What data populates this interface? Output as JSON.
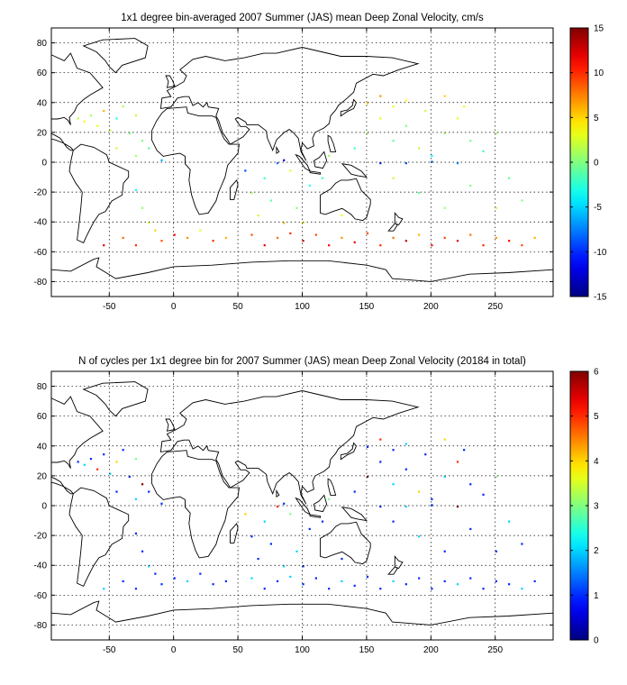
{
  "chart_data": [
    {
      "type": "heatmap",
      "title": "1x1 degree bin-averaged 2007 Summer (JAS) mean Deep Zonal Velocity, cm/s",
      "xlabel": "",
      "ylabel": "",
      "xlim": [
        -95,
        295
      ],
      "ylim": [
        -90,
        90
      ],
      "x_ticks": [
        -50,
        0,
        50,
        100,
        150,
        200,
        250
      ],
      "y_ticks": [
        80,
        60,
        40,
        20,
        0,
        -20,
        -40,
        -60,
        -80
      ],
      "colorbar": {
        "min": -15,
        "max": 15,
        "ticks": [
          15,
          10,
          5,
          0,
          -5,
          -10,
          -15
        ]
      },
      "colormap": "jet",
      "grid": true,
      "bins": [
        [
          -75,
          30,
          2
        ],
        [
          -70,
          28,
          4
        ],
        [
          -65,
          32,
          1
        ],
        [
          -60,
          25,
          3
        ],
        [
          -55,
          35,
          6
        ],
        [
          -50,
          22,
          2
        ],
        [
          -45,
          30,
          -3
        ],
        [
          -40,
          38,
          1
        ],
        [
          -35,
          20,
          0
        ],
        [
          -30,
          32,
          2
        ],
        [
          -60,
          -5,
          -4
        ],
        [
          -40,
          -10,
          2
        ],
        [
          -30,
          -18,
          -3
        ],
        [
          -25,
          -30,
          1
        ],
        [
          -20,
          -40,
          3
        ],
        [
          -15,
          -45,
          5
        ],
        [
          -40,
          -50,
          8
        ],
        [
          -30,
          -55,
          10
        ],
        [
          -55,
          -55,
          12
        ],
        [
          -10,
          -52,
          9
        ],
        [
          0,
          -48,
          11
        ],
        [
          10,
          -50,
          7
        ],
        [
          20,
          -45,
          3
        ],
        [
          30,
          -52,
          10
        ],
        [
          40,
          -50,
          6
        ],
        [
          60,
          -48,
          9
        ],
        [
          70,
          -55,
          12
        ],
        [
          80,
          -50,
          8
        ],
        [
          90,
          -47,
          10
        ],
        [
          100,
          -52,
          13
        ],
        [
          110,
          -48,
          9
        ],
        [
          120,
          -55,
          11
        ],
        [
          130,
          -50,
          7
        ],
        [
          140,
          -53,
          12
        ],
        [
          150,
          -47,
          9
        ],
        [
          160,
          -55,
          10
        ],
        [
          170,
          -50,
          8
        ],
        [
          180,
          -52,
          13
        ],
        [
          190,
          -48,
          6
        ],
        [
          200,
          -55,
          11
        ],
        [
          210,
          -50,
          9
        ],
        [
          220,
          -52,
          12
        ],
        [
          230,
          -48,
          8
        ],
        [
          240,
          -55,
          10
        ],
        [
          250,
          -50,
          7
        ],
        [
          260,
          -52,
          11
        ],
        [
          270,
          -55,
          9
        ],
        [
          280,
          -50,
          6
        ],
        [
          60,
          -20,
          1
        ],
        [
          70,
          -10,
          -2
        ],
        [
          80,
          0,
          -8
        ],
        [
          85,
          2,
          -12
        ],
        [
          90,
          -5,
          3
        ],
        [
          75,
          -25,
          -1
        ],
        [
          65,
          -35,
          2
        ],
        [
          95,
          -30,
          0
        ],
        [
          105,
          -15,
          -3
        ],
        [
          55,
          -5,
          -9
        ],
        [
          140,
          10,
          -2
        ],
        [
          150,
          20,
          1
        ],
        [
          160,
          30,
          3
        ],
        [
          170,
          15,
          -1
        ],
        [
          180,
          25,
          0
        ],
        [
          190,
          10,
          2
        ],
        [
          200,
          5,
          -4
        ],
        [
          210,
          20,
          1
        ],
        [
          220,
          30,
          3
        ],
        [
          230,
          15,
          0
        ],
        [
          240,
          8,
          -2
        ],
        [
          250,
          20,
          1
        ],
        [
          160,
          0,
          -10
        ],
        [
          180,
          0,
          -9
        ],
        [
          200,
          1,
          -8
        ],
        [
          220,
          0,
          -7
        ],
        [
          170,
          -10,
          2
        ],
        [
          190,
          -20,
          -1
        ],
        [
          210,
          -30,
          1
        ],
        [
          230,
          -15,
          0
        ],
        [
          250,
          -30,
          2
        ],
        [
          260,
          -10,
          -1
        ],
        [
          270,
          -25,
          0
        ],
        [
          150,
          40,
          5
        ],
        [
          160,
          45,
          7
        ],
        [
          170,
          38,
          3
        ],
        [
          180,
          42,
          4
        ],
        [
          195,
          35,
          2
        ],
        [
          210,
          45,
          5
        ],
        [
          225,
          38,
          3
        ],
        [
          -20,
          10,
          -1
        ],
        [
          -30,
          5,
          1
        ],
        [
          -10,
          2,
          -6
        ],
        [
          -25,
          15,
          0
        ],
        [
          -45,
          10,
          2
        ],
        [
          115,
          -10,
          -2
        ],
        [
          120,
          5,
          1
        ],
        [
          130,
          -35,
          3
        ],
        [
          100,
          -40,
          4
        ],
        [
          85,
          -40,
          6
        ]
      ]
    },
    {
      "type": "heatmap",
      "title": "N of cycles per 1x1 degree bin for 2007 Summer (JAS) mean Deep Zonal Velocity (20184 in total)",
      "xlabel": "",
      "ylabel": "",
      "xlim": [
        -95,
        295
      ],
      "ylim": [
        -90,
        90
      ],
      "x_ticks": [
        -50,
        0,
        50,
        100,
        150,
        200,
        250
      ],
      "y_ticks": [
        80,
        60,
        40,
        20,
        0,
        -20,
        -40,
        -60,
        -80
      ],
      "colorbar": {
        "min": 0,
        "max": 6,
        "ticks": [
          6,
          5,
          4,
          3,
          2,
          1,
          0
        ]
      },
      "colormap": "jet",
      "grid": true,
      "bins": [
        [
          -75,
          30,
          1
        ],
        [
          -70,
          28,
          2
        ],
        [
          -65,
          32,
          1
        ],
        [
          -60,
          25,
          5
        ],
        [
          -55,
          35,
          1
        ],
        [
          -50,
          22,
          2
        ],
        [
          -45,
          30,
          4
        ],
        [
          -40,
          38,
          1
        ],
        [
          -35,
          20,
          1
        ],
        [
          -30,
          32,
          3
        ],
        [
          -60,
          -5,
          1
        ],
        [
          -40,
          -10,
          2
        ],
        [
          -30,
          -18,
          1
        ],
        [
          -25,
          -30,
          1
        ],
        [
          -20,
          -40,
          2
        ],
        [
          -15,
          -45,
          1
        ],
        [
          -40,
          -50,
          1
        ],
        [
          -30,
          -55,
          1
        ],
        [
          -55,
          -55,
          2
        ],
        [
          -10,
          -52,
          1
        ],
        [
          0,
          -48,
          1
        ],
        [
          10,
          -50,
          2
        ],
        [
          20,
          -45,
          1
        ],
        [
          30,
          -52,
          1
        ],
        [
          40,
          -50,
          1
        ],
        [
          60,
          -48,
          2
        ],
        [
          70,
          -55,
          1
        ],
        [
          80,
          -50,
          1
        ],
        [
          90,
          -47,
          2
        ],
        [
          100,
          -52,
          1
        ],
        [
          110,
          -48,
          1
        ],
        [
          120,
          -55,
          1
        ],
        [
          130,
          -50,
          2
        ],
        [
          140,
          -53,
          1
        ],
        [
          150,
          -47,
          1
        ],
        [
          160,
          -55,
          1
        ],
        [
          170,
          -50,
          2
        ],
        [
          180,
          -52,
          1
        ],
        [
          190,
          -48,
          1
        ],
        [
          200,
          -55,
          1
        ],
        [
          210,
          -50,
          1
        ],
        [
          220,
          -52,
          2
        ],
        [
          230,
          -48,
          1
        ],
        [
          240,
          -55,
          1
        ],
        [
          250,
          -50,
          1
        ],
        [
          260,
          -52,
          1
        ],
        [
          270,
          -55,
          2
        ],
        [
          280,
          -50,
          1
        ],
        [
          60,
          -20,
          1
        ],
        [
          70,
          -10,
          2
        ],
        [
          80,
          0,
          5
        ],
        [
          85,
          2,
          1
        ],
        [
          90,
          -5,
          3
        ],
        [
          75,
          -25,
          1
        ],
        [
          65,
          -35,
          1
        ],
        [
          95,
          -30,
          2
        ],
        [
          105,
          -15,
          1
        ],
        [
          55,
          -5,
          4
        ],
        [
          140,
          10,
          1
        ],
        [
          150,
          20,
          6
        ],
        [
          160,
          30,
          1
        ],
        [
          170,
          15,
          2
        ],
        [
          180,
          25,
          1
        ],
        [
          190,
          10,
          4
        ],
        [
          200,
          5,
          1
        ],
        [
          210,
          20,
          2
        ],
        [
          220,
          30,
          5
        ],
        [
          230,
          15,
          1
        ],
        [
          240,
          8,
          1
        ],
        [
          250,
          20,
          3
        ],
        [
          160,
          0,
          1
        ],
        [
          180,
          0,
          2
        ],
        [
          200,
          1,
          1
        ],
        [
          220,
          0,
          6
        ],
        [
          170,
          -10,
          1
        ],
        [
          190,
          -20,
          2
        ],
        [
          210,
          -30,
          1
        ],
        [
          230,
          -15,
          1
        ],
        [
          250,
          -30,
          1
        ],
        [
          260,
          -10,
          2
        ],
        [
          270,
          -25,
          1
        ],
        [
          150,
          40,
          1
        ],
        [
          160,
          45,
          5
        ],
        [
          170,
          38,
          1
        ],
        [
          180,
          42,
          2
        ],
        [
          195,
          35,
          1
        ],
        [
          210,
          45,
          4
        ],
        [
          225,
          38,
          1
        ],
        [
          -20,
          10,
          1
        ],
        [
          -30,
          5,
          2
        ],
        [
          -10,
          2,
          1
        ],
        [
          -25,
          15,
          6
        ],
        [
          -45,
          10,
          1
        ],
        [
          115,
          -10,
          1
        ],
        [
          120,
          5,
          3
        ],
        [
          130,
          -35,
          1
        ],
        [
          100,
          -40,
          1
        ],
        [
          85,
          -40,
          2
        ]
      ]
    }
  ]
}
